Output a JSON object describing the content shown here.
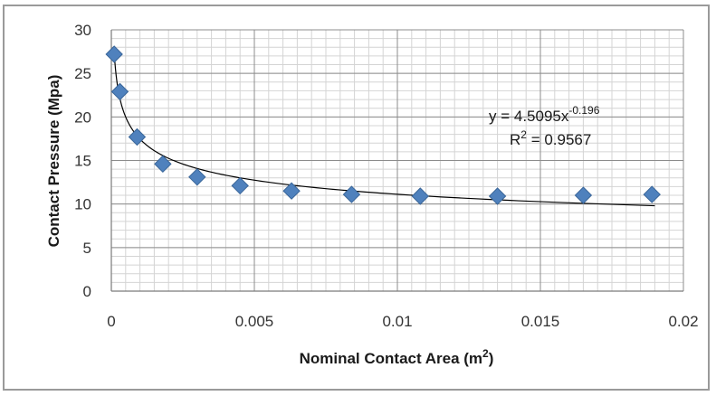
{
  "chart_data": {
    "type": "scatter",
    "xlabel": "Nominal Contact Area (m",
    "xlabel_sup": "2",
    "xlabel_end": ")",
    "ylabel": "Contact Pressure (Mpa)",
    "xlim": [
      0,
      0.02
    ],
    "ylim": [
      0,
      30
    ],
    "x_ticks": [
      "0",
      "0.005",
      "0.01",
      "0.015",
      "0.02"
    ],
    "y_ticks": [
      "0",
      "5",
      "10",
      "15",
      "20",
      "25",
      "30"
    ],
    "grid": true,
    "series": [
      {
        "marker": "diamond",
        "color": "#4f81bd",
        "x": [
          0.0001,
          0.0003,
          0.0009,
          0.0018,
          0.003,
          0.0045,
          0.0063,
          0.0084,
          0.0108,
          0.0135,
          0.0165,
          0.0189
        ],
        "y": [
          27.2,
          22.9,
          17.7,
          14.6,
          13.1,
          12.1,
          11.5,
          11.1,
          10.9,
          10.9,
          11.0,
          11.1
        ]
      }
    ],
    "trendline": {
      "type": "power",
      "a": 4.5095,
      "b": -0.196,
      "x_range": [
        0.0001,
        0.019
      ],
      "equation_text": "y = 4.5095x",
      "equation_exp": "-0.196",
      "r2_label": "R",
      "r2_sup": "2",
      "r2_value": " = 0.9567"
    }
  }
}
